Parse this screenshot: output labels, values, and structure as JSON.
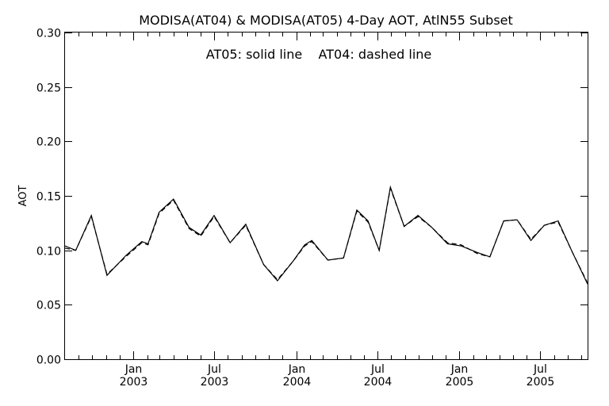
{
  "chart_data": {
    "type": "line",
    "title": "MODISA(AT04) & MODISA(AT05) 4-Day AOT, AtlN55 Subset",
    "annotation": "AT05: solid line    AT04: dashed line",
    "xlabel": "",
    "ylabel": "AOT",
    "ylim": [
      0.0,
      0.3
    ],
    "yticks": [
      "0.00",
      "0.05",
      "0.10",
      "0.15",
      "0.20",
      "0.25",
      "0.30"
    ],
    "ytick_values": [
      0.0,
      0.05,
      0.1,
      0.15,
      0.2,
      0.25,
      0.3
    ],
    "xlim": [
      "2002-08-01",
      "2005-10-15"
    ],
    "xticks": [
      {
        "date": "2003-01-01",
        "line1": "Jan",
        "line2": "2003"
      },
      {
        "date": "2003-07-01",
        "line1": "Jul",
        "line2": "2003"
      },
      {
        "date": "2004-01-01",
        "line1": "Jan",
        "line2": "2004"
      },
      {
        "date": "2004-07-01",
        "line1": "Jul",
        "line2": "2004"
      },
      {
        "date": "2005-01-01",
        "line1": "Jan",
        "line2": "2005"
      },
      {
        "date": "2005-07-01",
        "line1": "Jul",
        "line2": "2005"
      }
    ],
    "grid": false,
    "series": [
      {
        "name": "AT05",
        "style": "solid",
        "points": [
          [
            "2002-08-01",
            0.104
          ],
          [
            "2002-08-25",
            0.1
          ],
          [
            "2002-09-29",
            0.132
          ],
          [
            "2002-11-03",
            0.077
          ],
          [
            "2002-12-15",
            0.095
          ],
          [
            "2003-01-20",
            0.108
          ],
          [
            "2003-02-03",
            0.106
          ],
          [
            "2003-02-28",
            0.135
          ],
          [
            "2003-04-01",
            0.147
          ],
          [
            "2003-05-06",
            0.121
          ],
          [
            "2003-06-01",
            0.114
          ],
          [
            "2003-07-01",
            0.132
          ],
          [
            "2003-08-06",
            0.107
          ],
          [
            "2003-09-10",
            0.124
          ],
          [
            "2003-10-20",
            0.087
          ],
          [
            "2003-11-20",
            0.072
          ],
          [
            "2003-12-25",
            0.09
          ],
          [
            "2004-01-20",
            0.105
          ],
          [
            "2004-02-05",
            0.109
          ],
          [
            "2004-03-12",
            0.091
          ],
          [
            "2004-04-16",
            0.093
          ],
          [
            "2004-05-16",
            0.137
          ],
          [
            "2004-06-10",
            0.127
          ],
          [
            "2004-07-05",
            0.1
          ],
          [
            "2004-07-30",
            0.158
          ],
          [
            "2004-08-30",
            0.122
          ],
          [
            "2004-09-30",
            0.132
          ],
          [
            "2004-10-31",
            0.121
          ],
          [
            "2004-12-05",
            0.106
          ],
          [
            "2005-01-05",
            0.104
          ],
          [
            "2005-02-10",
            0.098
          ],
          [
            "2005-03-10",
            0.094
          ],
          [
            "2005-04-10",
            0.127
          ],
          [
            "2005-05-10",
            0.128
          ],
          [
            "2005-06-10",
            0.109
          ],
          [
            "2005-07-10",
            0.123
          ],
          [
            "2005-08-10",
            0.127
          ],
          [
            "2005-09-10",
            0.099
          ],
          [
            "2005-10-15",
            0.069
          ]
        ]
      },
      {
        "name": "AT04",
        "style": "dashed",
        "points": [
          [
            "2002-08-01",
            0.102
          ],
          [
            "2002-08-25",
            0.1
          ],
          [
            "2002-09-29",
            0.131
          ],
          [
            "2002-11-03",
            0.078
          ],
          [
            "2002-12-15",
            0.094
          ],
          [
            "2003-01-20",
            0.107
          ],
          [
            "2003-02-03",
            0.105
          ],
          [
            "2003-02-28",
            0.134
          ],
          [
            "2003-04-01",
            0.146
          ],
          [
            "2003-05-06",
            0.12
          ],
          [
            "2003-06-01",
            0.113
          ],
          [
            "2003-07-01",
            0.131
          ],
          [
            "2003-08-06",
            0.107
          ],
          [
            "2003-09-10",
            0.123
          ],
          [
            "2003-10-20",
            0.087
          ],
          [
            "2003-11-20",
            0.073
          ],
          [
            "2003-12-25",
            0.09
          ],
          [
            "2004-01-20",
            0.104
          ],
          [
            "2004-02-05",
            0.108
          ],
          [
            "2004-03-12",
            0.091
          ],
          [
            "2004-04-16",
            0.093
          ],
          [
            "2004-05-16",
            0.136
          ],
          [
            "2004-06-10",
            0.126
          ],
          [
            "2004-07-05",
            0.1
          ],
          [
            "2004-07-30",
            0.157
          ],
          [
            "2004-08-30",
            0.122
          ],
          [
            "2004-09-30",
            0.131
          ],
          [
            "2004-10-31",
            0.121
          ],
          [
            "2004-12-05",
            0.107
          ],
          [
            "2005-01-05",
            0.105
          ],
          [
            "2005-02-10",
            0.097
          ],
          [
            "2005-03-10",
            0.094
          ],
          [
            "2005-04-10",
            0.127
          ],
          [
            "2005-05-10",
            0.128
          ],
          [
            "2005-06-10",
            0.11
          ],
          [
            "2005-07-10",
            0.123
          ],
          [
            "2005-08-10",
            0.126
          ],
          [
            "2005-09-10",
            0.099
          ],
          [
            "2005-10-15",
            0.07
          ]
        ]
      }
    ]
  }
}
